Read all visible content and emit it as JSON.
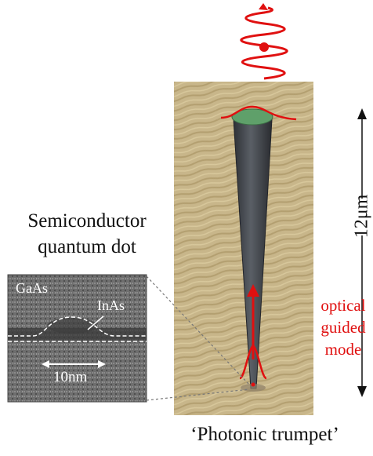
{
  "semiconductor_title": [
    "Semiconductor",
    "quantum dot"
  ],
  "tem_inset": {
    "material_top": "GaAs",
    "dot_material": "InAs",
    "scale_label": "10nm"
  },
  "sem_image": {
    "height_scale_label": "12μm",
    "optical_mode_label": [
      "optical",
      "guided",
      "mode"
    ]
  },
  "caption": "‘Photonic trumpet’",
  "colors": {
    "accent_red": "#e01010",
    "sem_background": "#c9b88c",
    "wire_body": "#43474d",
    "top_facet": "#5fa06a"
  },
  "icons": [
    "emission-wave-icon",
    "photon-dot-icon",
    "guided-mode-arrow-icon"
  ]
}
